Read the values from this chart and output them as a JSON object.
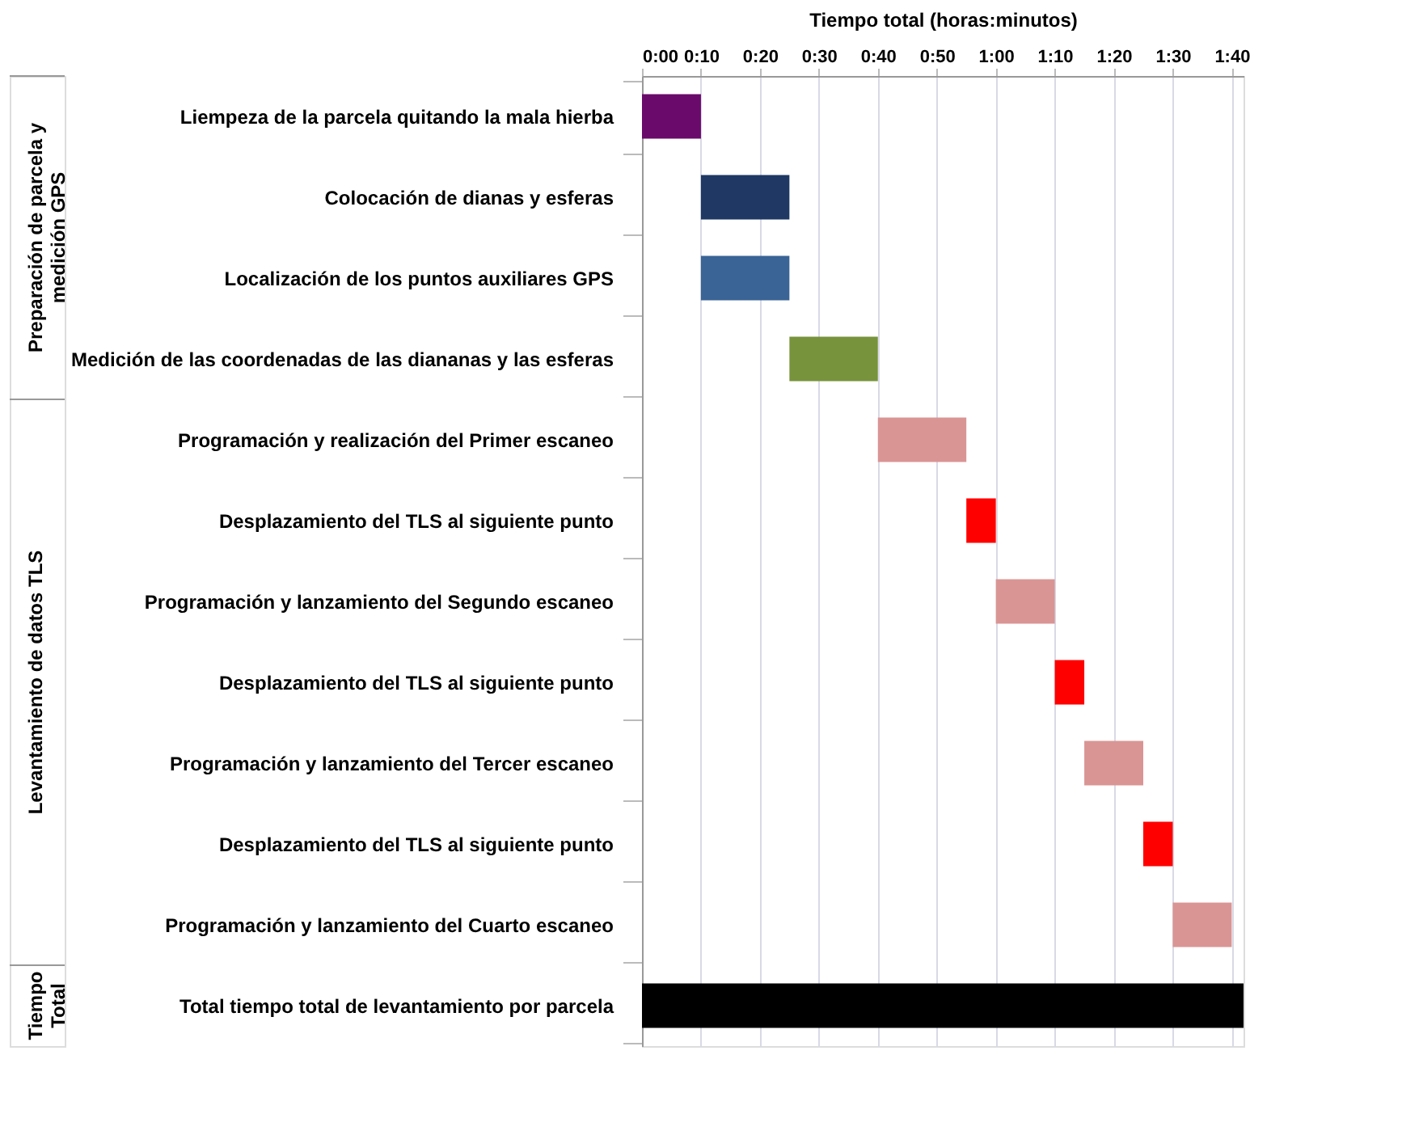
{
  "chart_data": {
    "type": "bar",
    "orientation": "horizontal",
    "xlabel": "Tiempo total (horas:minutos)",
    "categories": [
      "Liempeza de  la parcela quitando la mala hierba",
      "Colocación de  dianas y esferas",
      "Localización de los puntos auxiliares GPS",
      "Medición de las coordenadas de las diananas y las esferas",
      "Programación y realización del Primer escaneo",
      "Desplazamiento del TLS al siguiente punto",
      "Programación y lanzamiento del Segundo escaneo",
      "Desplazamiento del TLS al siguiente punto",
      "Programación y lanzamiento del Tercer escaneo",
      "Desplazamiento del TLS al siguiente punto",
      "Programación y lanzamiento del Cuarto escaneo",
      "Total tiempo total de levantamiento por parcela"
    ],
    "base": [
      0,
      10,
      10,
      25,
      40,
      55,
      60,
      70,
      75,
      85,
      90,
      0
    ],
    "values": [
      10,
      15,
      15,
      15,
      15,
      5,
      10,
      5,
      10,
      5,
      10,
      102
    ],
    "colors": [
      "#6a0a6a",
      "#1f3864",
      "#3a6496",
      "#77933c",
      "#d99594",
      "#ff0000",
      "#d99594",
      "#ff0000",
      "#d99594",
      "#ff0000",
      "#d99594",
      "#000000"
    ],
    "xlim": [
      0,
      102
    ],
    "xticks": [
      {
        "value": 0,
        "label": "0:00"
      },
      {
        "value": 10,
        "label": "0:10"
      },
      {
        "value": 20,
        "label": "0:20"
      },
      {
        "value": 30,
        "label": "0:30"
      },
      {
        "value": 40,
        "label": "0:40"
      },
      {
        "value": 50,
        "label": "0:50"
      },
      {
        "value": 60,
        "label": "1:00"
      },
      {
        "value": 70,
        "label": "1:10"
      },
      {
        "value": 80,
        "label": "1:20"
      },
      {
        "value": 90,
        "label": "1:30"
      },
      {
        "value": 100,
        "label": "1:40"
      }
    ],
    "grid": "x",
    "annotations": [
      "Preparación de parcela y\nmedición GPS",
      "Levantamiento de datos TLS",
      "Tiempo\nTotal"
    ]
  }
}
